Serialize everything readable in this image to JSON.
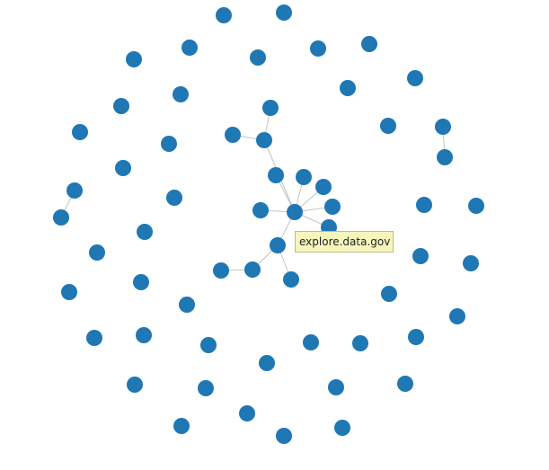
{
  "graph": {
    "node_color": "#1f77b4",
    "link_color": "#c4c4c4",
    "node_count": 77,
    "hovered_node_tooltip": "explore.data.gov",
    "tooltip_bg": "#f5f5bc"
  }
}
